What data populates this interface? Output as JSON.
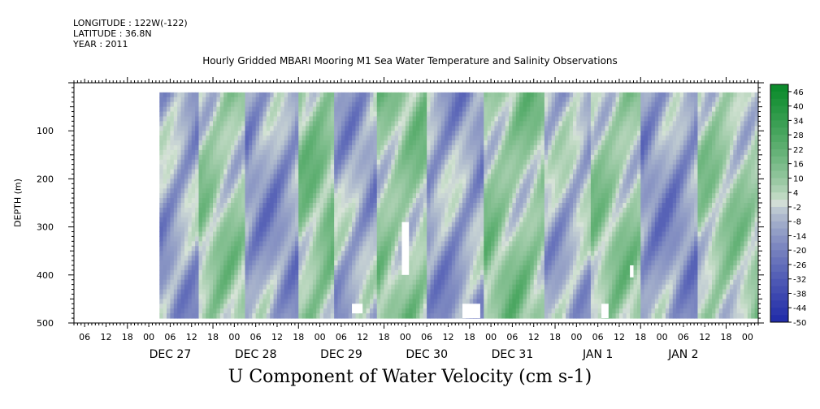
{
  "header": {
    "longitude": "LONGITUDE : 122W(-122)",
    "latitude": "LATITUDE : 36.8N",
    "year": "YEAR : 2011"
  },
  "chart_data": {
    "type": "heatmap",
    "title": "Hourly Gridded MBARI Mooring M1 Sea Water Temperature and Salinity Observations",
    "bottom_title": "U Component of Water Velocity (cm s-1)",
    "xlabel": "",
    "ylabel": "DEPTH (m)",
    "x_units": "hours since DEC 27 00",
    "xlim": [
      -15,
      177
    ],
    "ylim": [
      500,
      0
    ],
    "y_inverted": true,
    "data_range": {
      "depth": [
        20,
        490
      ],
      "hours": [
        9,
        177
      ]
    },
    "yticks": [
      100,
      200,
      300,
      400,
      500
    ],
    "x_hour_ticks": [
      "06",
      "12",
      "18",
      "00",
      "06",
      "12",
      "18",
      "00",
      "06",
      "12",
      "18",
      "00",
      "06",
      "12",
      "18",
      "00",
      "06",
      "12",
      "18",
      "00",
      "06",
      "12",
      "18",
      "00",
      "06",
      "12",
      "18",
      "00",
      "06",
      "12",
      "18",
      "00"
    ],
    "date_labels": [
      "DEC 27",
      "DEC 28",
      "DEC 29",
      "DEC 30",
      "DEC 31",
      "JAN 1",
      "JAN 2"
    ],
    "colorbar": {
      "levels": [
        48,
        46,
        43,
        40,
        37,
        34,
        31,
        28,
        25,
        22,
        19,
        16,
        13,
        10,
        7,
        4,
        1,
        -2,
        -5,
        -8,
        -11,
        -14,
        -17,
        -20,
        -23,
        -26,
        -29,
        -32,
        -35,
        -38,
        -41,
        -44,
        -47,
        -50
      ],
      "tick_labels": [
        "46",
        "40",
        "34",
        "28",
        "22",
        "16",
        "10",
        "4",
        "-2",
        "-8",
        "-14",
        "-20",
        "-26",
        "-32",
        "-38",
        "-44",
        "-50"
      ],
      "positive_color": "#0a8a2a",
      "negative_color": "#1f2aa8",
      "zero_color": "#d8e4d8"
    },
    "field_pattern": [
      {
        "hours": [
          9,
          20
        ],
        "value": -10
      },
      {
        "hours": [
          20,
          33
        ],
        "value": 6
      },
      {
        "hours": [
          33,
          48
        ],
        "value": -12
      },
      {
        "hours": [
          48,
          58
        ],
        "value": 10
      },
      {
        "hours": [
          58,
          70
        ],
        "value": -9
      },
      {
        "hours": [
          70,
          84
        ],
        "value": 8
      },
      {
        "hours": [
          84,
          100
        ],
        "value": -11
      },
      {
        "hours": [
          100,
          117
        ],
        "value": 9
      },
      {
        "hours": [
          117,
          130
        ],
        "value": -6
      },
      {
        "hours": [
          130,
          144
        ],
        "value": 7
      },
      {
        "hours": [
          144,
          160
        ],
        "value": -13
      },
      {
        "hours": [
          160,
          177
        ],
        "value": 5
      }
    ],
    "missing_blocks": [
      {
        "hours": [
          77,
          79
        ],
        "depth": [
          290,
          400
        ]
      },
      {
        "hours": [
          63,
          66
        ],
        "depth": [
          460,
          480
        ]
      },
      {
        "hours": [
          94,
          99
        ],
        "depth": [
          460,
          490
        ]
      },
      {
        "hours": [
          133,
          135
        ],
        "depth": [
          460,
          490
        ]
      },
      {
        "hours": [
          141,
          142
        ],
        "depth": [
          380,
          405
        ]
      }
    ]
  }
}
